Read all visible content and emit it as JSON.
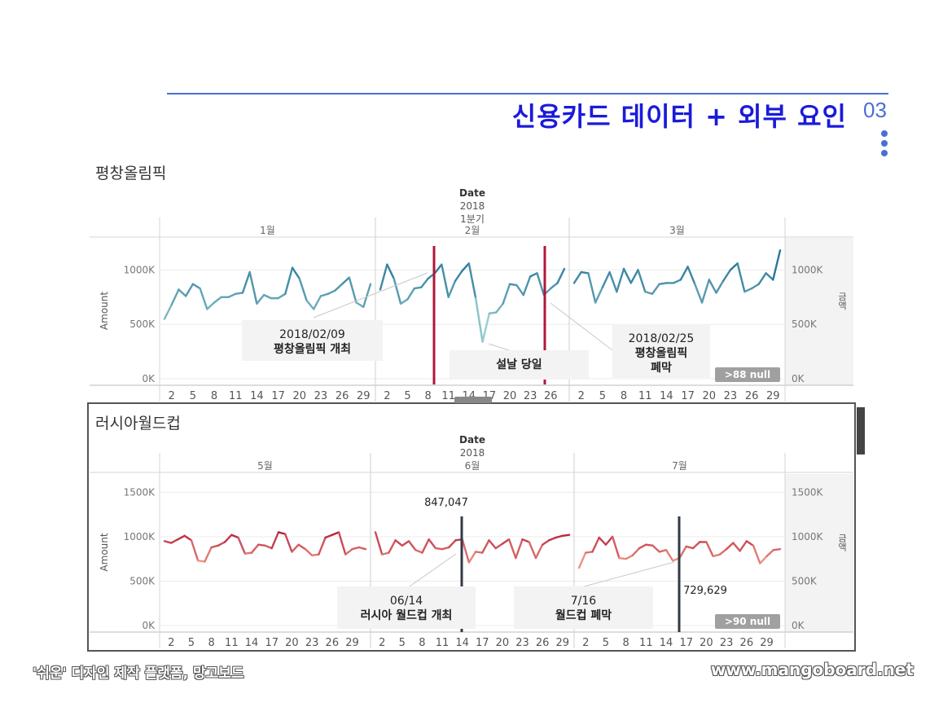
{
  "header": {
    "title": "신용카드 데이터 + 외부 요인",
    "page_number": "03"
  },
  "footer": {
    "left": "'쉬운' 디자인 제작 플랫폼, 망고보드",
    "right": "www.mangoboard.net"
  },
  "colors": {
    "accent": "#1a1adb",
    "line_top": "#3f8ea8",
    "line_bottom": "#d8404f",
    "marker_red": "#b0173a",
    "marker_dark": "#333a44"
  },
  "chart_data": [
    {
      "type": "line",
      "title": "평창올림픽",
      "header_label": "Date",
      "year_label": "2018",
      "quarter_label": "1분기",
      "months": [
        "1월",
        "2월",
        "3월"
      ],
      "ylabel": "Amount",
      "ylabel_right": "금액",
      "ylim": [
        0,
        1250000
      ],
      "y_ticks": [
        "0K",
        "500K",
        "1000K"
      ],
      "x_ticks": [
        [
          "2",
          "5",
          "8",
          "11",
          "14",
          "17",
          "20",
          "23",
          "26",
          "29"
        ],
        [
          "2",
          "5",
          "8",
          "11",
          "14",
          "17",
          "20",
          "23",
          "26"
        ],
        [
          "2",
          "5",
          "8",
          "11",
          "14",
          "17",
          "20",
          "23",
          "26",
          "29"
        ]
      ],
      "series": [
        {
          "values": [
            550000,
            680000,
            820000,
            760000,
            870000,
            830000,
            640000,
            700000,
            750000,
            750000,
            780000,
            790000,
            980000,
            690000,
            770000,
            740000,
            740000,
            780000,
            1020000,
            920000,
            720000,
            640000,
            760000,
            780000,
            810000,
            870000,
            930000,
            700000,
            660000,
            870000
          ]
        },
        {
          "values": [
            820000,
            1050000,
            920000,
            690000,
            730000,
            830000,
            840000,
            920000,
            970000,
            1050000,
            750000,
            900000,
            990000,
            1060000,
            740000,
            340000,
            600000,
            610000,
            690000,
            870000,
            860000,
            770000,
            940000,
            970000,
            770000,
            830000,
            880000,
            1010000
          ]
        },
        {
          "values": [
            880000,
            980000,
            970000,
            700000,
            840000,
            980000,
            800000,
            1010000,
            880000,
            1000000,
            800000,
            780000,
            870000,
            880000,
            880000,
            910000,
            1030000,
            870000,
            700000,
            910000,
            790000,
            900000,
            1000000,
            1060000,
            800000,
            830000,
            870000,
            970000,
            910000,
            1180000
          ]
        }
      ],
      "annotations": [
        {
          "lines": [
            "2018/02/09",
            "평창올림픽 개최"
          ]
        },
        {
          "lines": [
            "설날 당일"
          ]
        },
        {
          "lines": [
            "2018/02/25",
            "평창올림픽",
            "폐막"
          ]
        }
      ],
      "null_badge": ">88 null"
    },
    {
      "type": "line",
      "title": "러시아월드컵",
      "header_label": "Date",
      "year_label": "2018",
      "months": [
        "5월",
        "6월",
        "7월"
      ],
      "ylabel": "Amount",
      "ylabel_right": "금액",
      "ylim": [
        0,
        1650000
      ],
      "y_ticks": [
        "0K",
        "500K",
        "1000K",
        "1500K"
      ],
      "x_ticks": [
        [
          "2",
          "5",
          "8",
          "11",
          "14",
          "17",
          "20",
          "23",
          "26",
          "29"
        ],
        [
          "2",
          "5",
          "8",
          "11",
          "14",
          "17",
          "20",
          "23",
          "26",
          "29"
        ],
        [
          "2",
          "5",
          "8",
          "11",
          "14",
          "17",
          "20",
          "23",
          "26",
          "29"
        ]
      ],
      "series": [
        {
          "values": [
            950000,
            930000,
            970000,
            1010000,
            960000,
            730000,
            720000,
            880000,
            900000,
            940000,
            1020000,
            990000,
            810000,
            820000,
            910000,
            900000,
            870000,
            1050000,
            1030000,
            830000,
            910000,
            860000,
            790000,
            800000,
            990000,
            1020000,
            1050000,
            800000,
            860000,
            880000,
            860000
          ]
        },
        {
          "values": [
            1050000,
            800000,
            820000,
            960000,
            900000,
            950000,
            850000,
            820000,
            970000,
            870000,
            860000,
            880000,
            960000,
            970000,
            710000,
            830000,
            820000,
            960000,
            870000,
            920000,
            970000,
            760000,
            970000,
            940000,
            760000,
            910000,
            960000,
            990000,
            1010000,
            1020000
          ]
        },
        {
          "values": [
            650000,
            820000,
            830000,
            990000,
            910000,
            1000000,
            760000,
            750000,
            790000,
            870000,
            910000,
            900000,
            830000,
            850000,
            730000,
            760000,
            890000,
            870000,
            940000,
            940000,
            780000,
            800000,
            860000,
            930000,
            840000,
            950000,
            900000,
            700000,
            780000,
            850000,
            860000
          ]
        }
      ],
      "annotations": [
        {
          "value_label": "847,047"
        },
        {
          "value_label": "729,629"
        },
        {
          "lines": [
            "06/14",
            "러시아 월드컵 개최"
          ]
        },
        {
          "lines": [
            "7/16",
            "월드컵 폐막"
          ]
        }
      ],
      "null_badge": ">90 null"
    }
  ]
}
